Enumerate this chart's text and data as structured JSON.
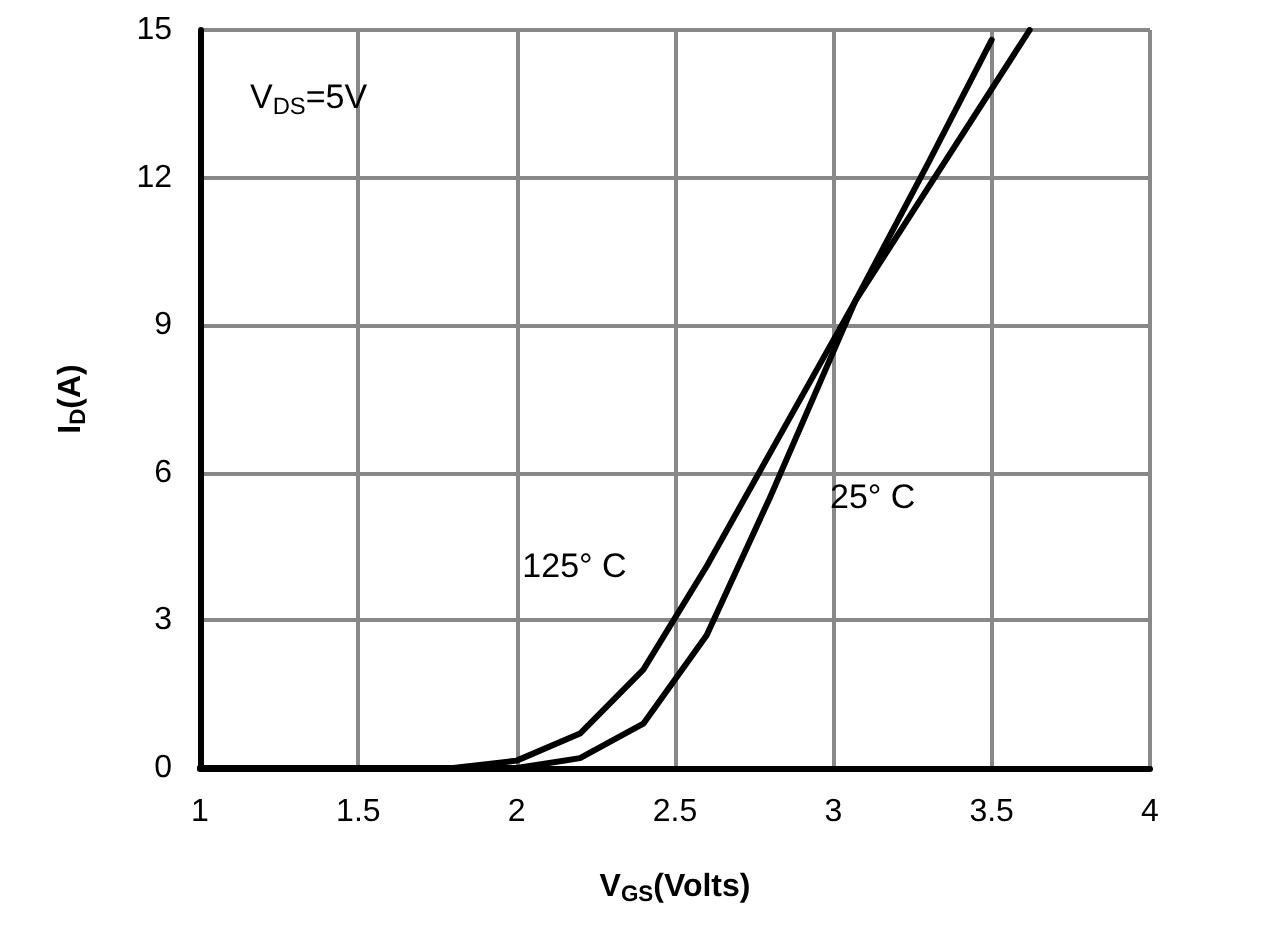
{
  "chart_data": {
    "type": "line",
    "xlabel": "V$_{GS}$(Volts)",
    "ylabel": "I$_{D}$(A)",
    "xlim": [
      1,
      4
    ],
    "xticks": [
      1,
      1.5,
      2,
      2.5,
      3,
      3.5,
      4
    ],
    "ylim": [
      0,
      15
    ],
    "yticks": [
      0,
      3,
      6,
      9,
      12,
      15
    ],
    "grid": true,
    "marker": "none",
    "line_style": "solid",
    "series": [
      {
        "name": "125° C",
        "color": "#000000",
        "x": [
          1,
          1.8,
          2,
          2.2,
          2.4,
          2.6,
          2.8,
          3.07,
          3.3,
          3.62
        ],
        "values": [
          0,
          0,
          0.15,
          0.7,
          2,
          4.1,
          6.4,
          9.5,
          11.8,
          15
        ]
      },
      {
        "name": "25° C",
        "color": "#000000",
        "x": [
          1,
          2,
          2.2,
          2.4,
          2.6,
          2.8,
          3.07,
          3.3,
          3.5
        ],
        "values": [
          0,
          0,
          0.2,
          0.9,
          2.7,
          5.5,
          9.5,
          12.3,
          14.8
        ]
      }
    ],
    "annotations": [
      "V$_{DS}$=5V"
    ]
  }
}
